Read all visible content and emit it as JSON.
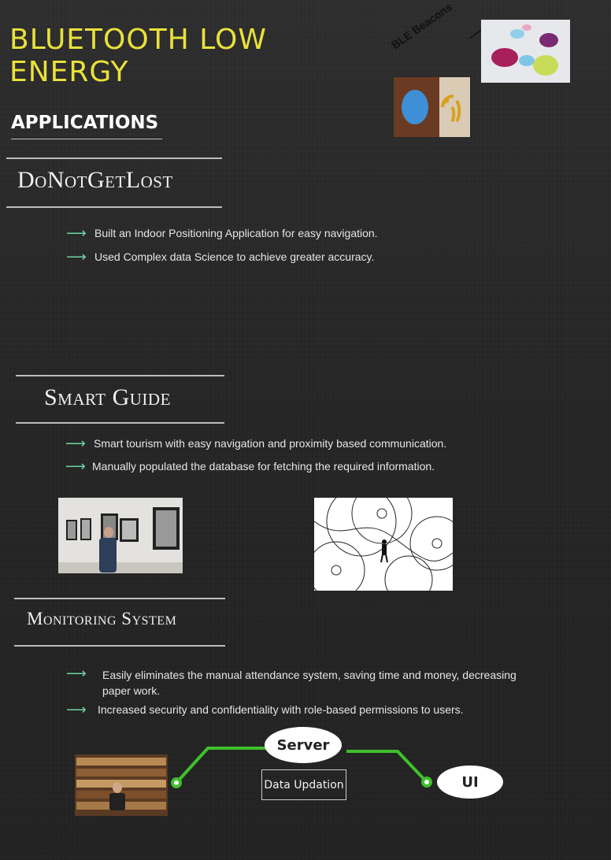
{
  "header": {
    "title": "BLUETOOTH LOW\nENERGY",
    "subtitle": "APPLICATIONS",
    "beacon_label": "BLE Beacons"
  },
  "sections": [
    {
      "heading": "DoNotGetLost",
      "bullets": [
        "Built an Indoor Positioning Application for easy navigation.",
        "Used Complex data Science  to achieve greater accuracy."
      ]
    },
    {
      "heading": "Smart Guide",
      "bullets": [
        "Smart tourism with easy navigation and proximity based communication.",
        "Manually populated the database for fetching the required information."
      ]
    },
    {
      "heading": "Monitoring System",
      "bullets": [
        "Easily eliminates the manual attendance system, saving time and money, decreasing paper work.",
        "Increased security and confidentiality with role-based permissions to users."
      ]
    }
  ],
  "diagram": {
    "server_label": "Server",
    "data_label": "Data Updation",
    "ui_label": "UI",
    "line_color": "#3fbf2c"
  },
  "colors": {
    "title": "#e9e13a",
    "arrow": "#6fd5a3"
  }
}
